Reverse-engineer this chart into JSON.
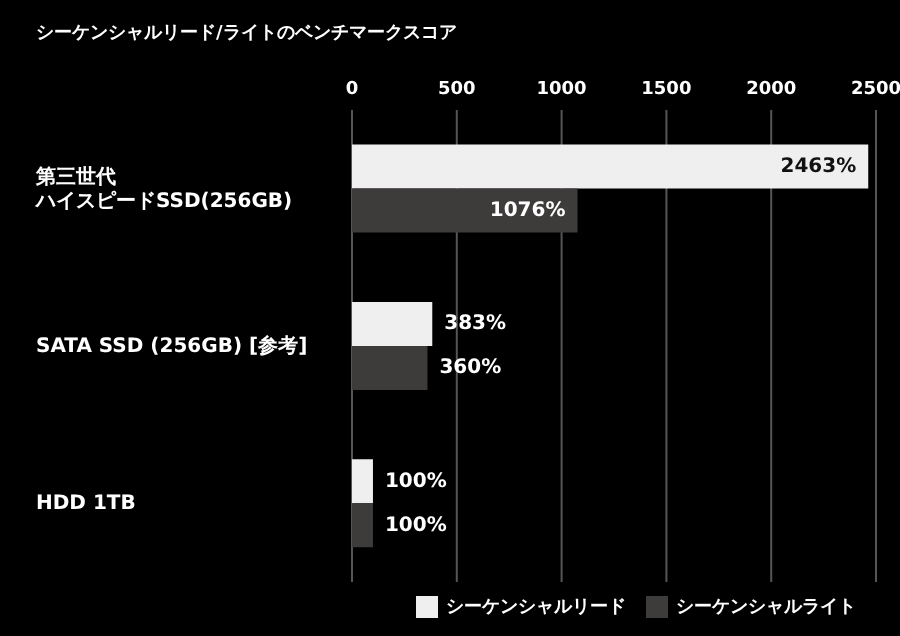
{
  "chart_data": {
    "type": "bar",
    "orientation": "horizontal",
    "title": "シーケンシャルリード/ライトのベンチマークスコア",
    "categories": [
      "第三世代ハイスピードSSD(256GB)",
      "SATA SSD (256GB) [参考]",
      "HDD 1TB"
    ],
    "series": [
      {
        "name": "シーケンシャルリード",
        "color": "#efefef",
        "values": [
          2463,
          383,
          100
        ],
        "value_labels": [
          "2463%",
          "383%",
          "100%"
        ]
      },
      {
        "name": "シーケンシャルライト",
        "color": "#3e3b3b",
        "values": [
          1076,
          360,
          100
        ],
        "value_labels": [
          "1076%",
          "360%",
          "100%"
        ]
      }
    ],
    "xlim": [
      0,
      2500
    ],
    "xticks": [
      0,
      500,
      1000,
      1500,
      2000,
      2500
    ],
    "grid": "x",
    "legend": "bottom right"
  }
}
